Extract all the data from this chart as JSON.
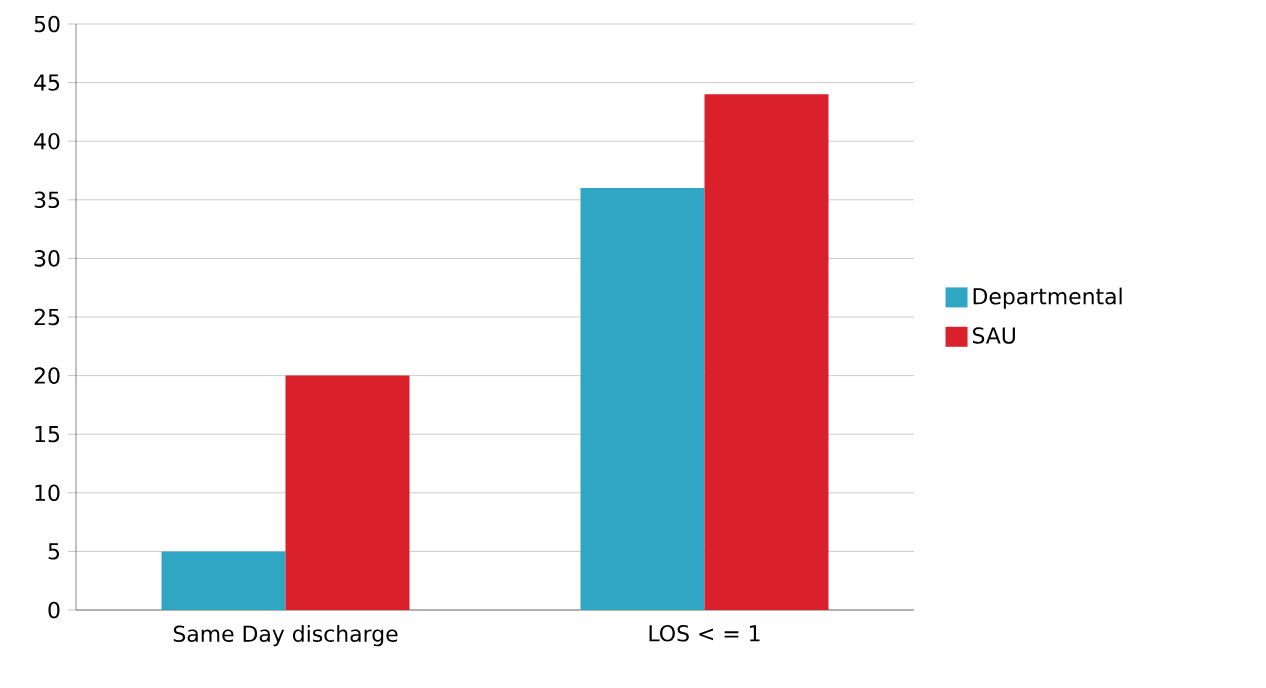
{
  "chart_data": {
    "type": "bar",
    "categories": [
      "Same Day discharge",
      "LOS < = 1"
    ],
    "series": [
      {
        "name": "Departmental",
        "color": "#2fa6c4",
        "values": [
          5,
          36
        ]
      },
      {
        "name": "SAU",
        "color": "#da202b",
        "values": [
          20,
          44
        ]
      }
    ],
    "ylim": [
      0,
      50
    ],
    "yticks": [
      0,
      5,
      10,
      15,
      20,
      25,
      30,
      35,
      40,
      45,
      50
    ],
    "grid": "y",
    "legend": "right"
  }
}
